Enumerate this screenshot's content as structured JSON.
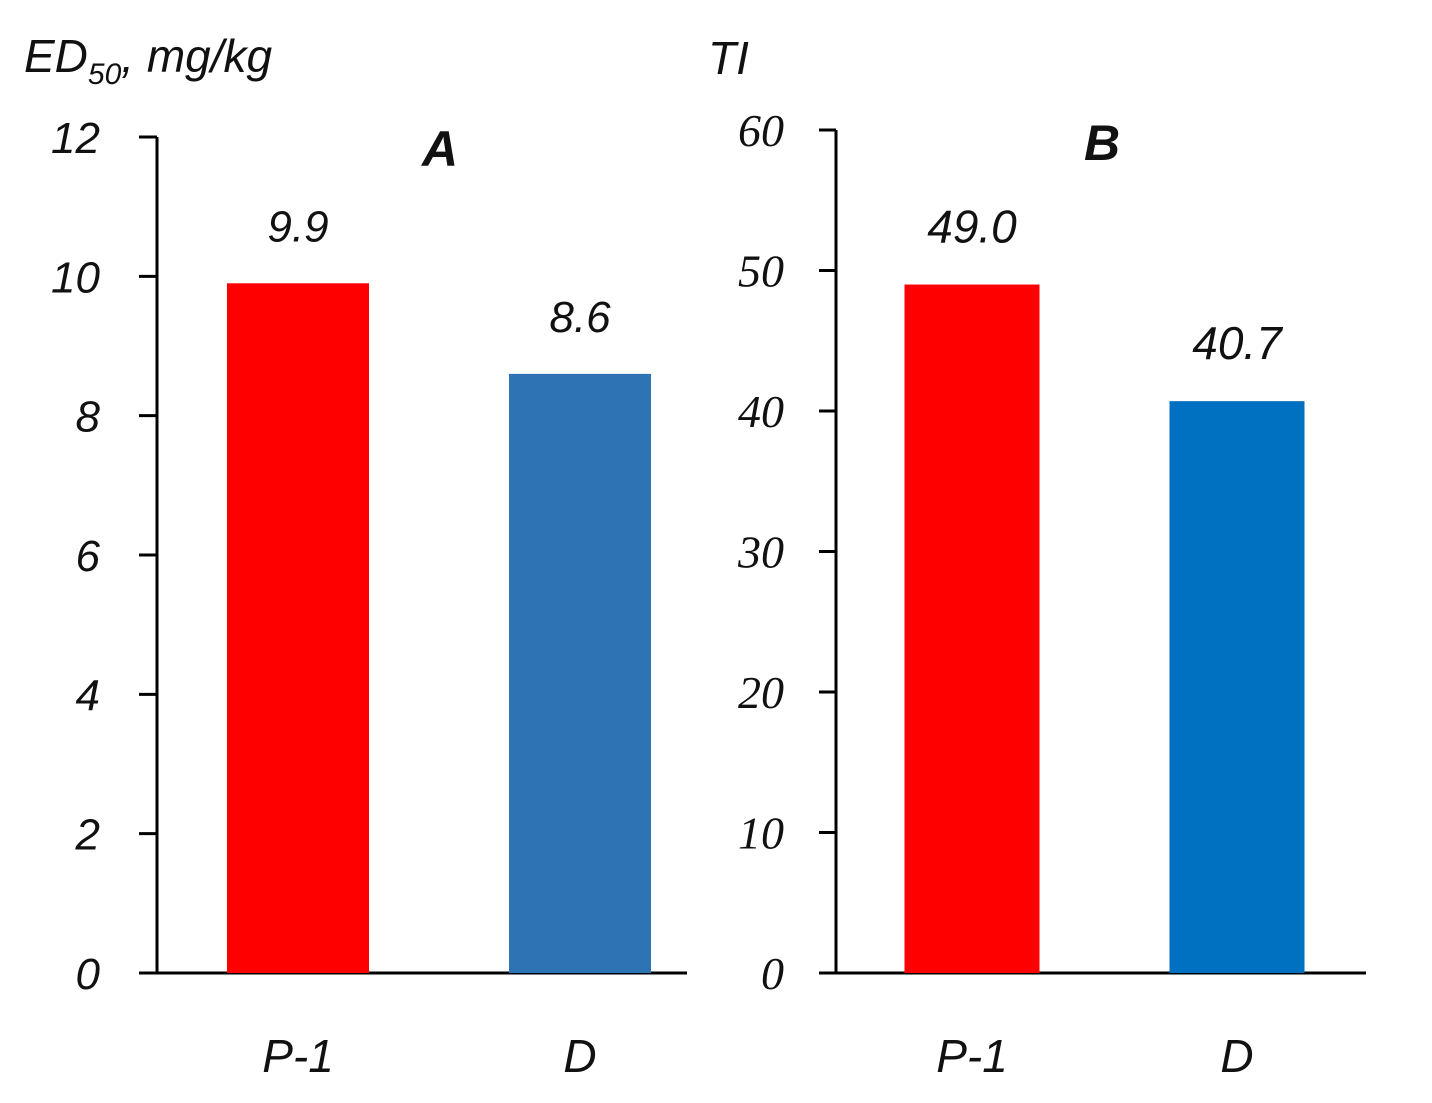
{
  "chart_data": [
    {
      "type": "bar",
      "title": "A",
      "ylabel": "ED",
      "ylabel_sub": "50",
      "ylabel_unit": ", mg/kg",
      "categories": [
        "P-1",
        "D"
      ],
      "values": [
        9.9,
        8.6
      ],
      "value_labels": [
        "9.9",
        "8.6"
      ],
      "colors": [
        "#ff0000",
        "#2e74b5"
      ],
      "ylim": [
        0,
        12
      ],
      "yticks": [
        "0",
        "2",
        "4",
        "6",
        "8",
        "10",
        "12"
      ],
      "legend": false,
      "grid": false
    },
    {
      "type": "bar",
      "title": "B",
      "ylabel": "TI",
      "categories": [
        "P-1",
        "D"
      ],
      "values": [
        49.0,
        40.7
      ],
      "value_labels": [
        "49.0",
        "40.7"
      ],
      "colors": [
        "#ff0000",
        "#0070c0"
      ],
      "ylim": [
        0,
        60
      ],
      "yticks": [
        "0",
        "10",
        "20",
        "30",
        "40",
        "50",
        "60"
      ],
      "legend": false,
      "grid": false
    }
  ]
}
